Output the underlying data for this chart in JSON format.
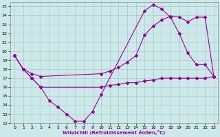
{
  "xlabel": "Windchill (Refroidissement éolien,°C)",
  "bg_color": "#cce8e8",
  "grid_color": "#aacccc",
  "line_color": "#990099",
  "xlim": [
    -0.5,
    23.5
  ],
  "ylim": [
    12,
    25.5
  ],
  "xticks": [
    0,
    1,
    2,
    3,
    4,
    5,
    6,
    7,
    8,
    9,
    10,
    11,
    12,
    13,
    14,
    15,
    16,
    17,
    18,
    19,
    20,
    21,
    22,
    23
  ],
  "yticks": [
    12,
    13,
    14,
    15,
    16,
    17,
    18,
    19,
    20,
    21,
    22,
    23,
    24,
    25
  ],
  "line1_x": [
    0,
    1,
    2,
    3,
    4,
    5,
    6,
    7,
    8,
    9,
    10,
    15,
    16,
    17,
    18,
    19,
    20,
    21,
    22,
    23
  ],
  "line1_y": [
    19.5,
    18.0,
    17.0,
    16.0,
    14.5,
    13.8,
    13.0,
    12.2,
    12.2,
    13.3,
    15.2,
    24.5,
    25.2,
    24.7,
    23.8,
    22.0,
    19.8,
    18.5,
    18.5,
    17.2
  ],
  "line2_x": [
    0,
    1,
    2,
    3,
    10,
    11,
    12,
    13,
    14,
    15,
    16,
    17,
    18,
    19,
    20,
    21,
    22,
    23
  ],
  "line2_y": [
    19.5,
    18.0,
    17.5,
    17.2,
    17.5,
    17.8,
    18.2,
    18.8,
    19.5,
    21.8,
    22.8,
    23.5,
    23.9,
    23.8,
    23.3,
    23.8,
    23.8,
    17.2
  ],
  "line3_x": [
    0,
    1,
    2,
    3,
    10,
    11,
    12,
    13,
    14,
    15,
    16,
    17,
    18,
    19,
    20,
    21,
    22,
    23
  ],
  "line3_y": [
    19.5,
    18.0,
    17.0,
    16.0,
    16.0,
    16.2,
    16.3,
    16.5,
    16.5,
    16.7,
    16.8,
    17.0,
    17.0,
    17.0,
    17.0,
    17.0,
    17.0,
    17.2
  ]
}
